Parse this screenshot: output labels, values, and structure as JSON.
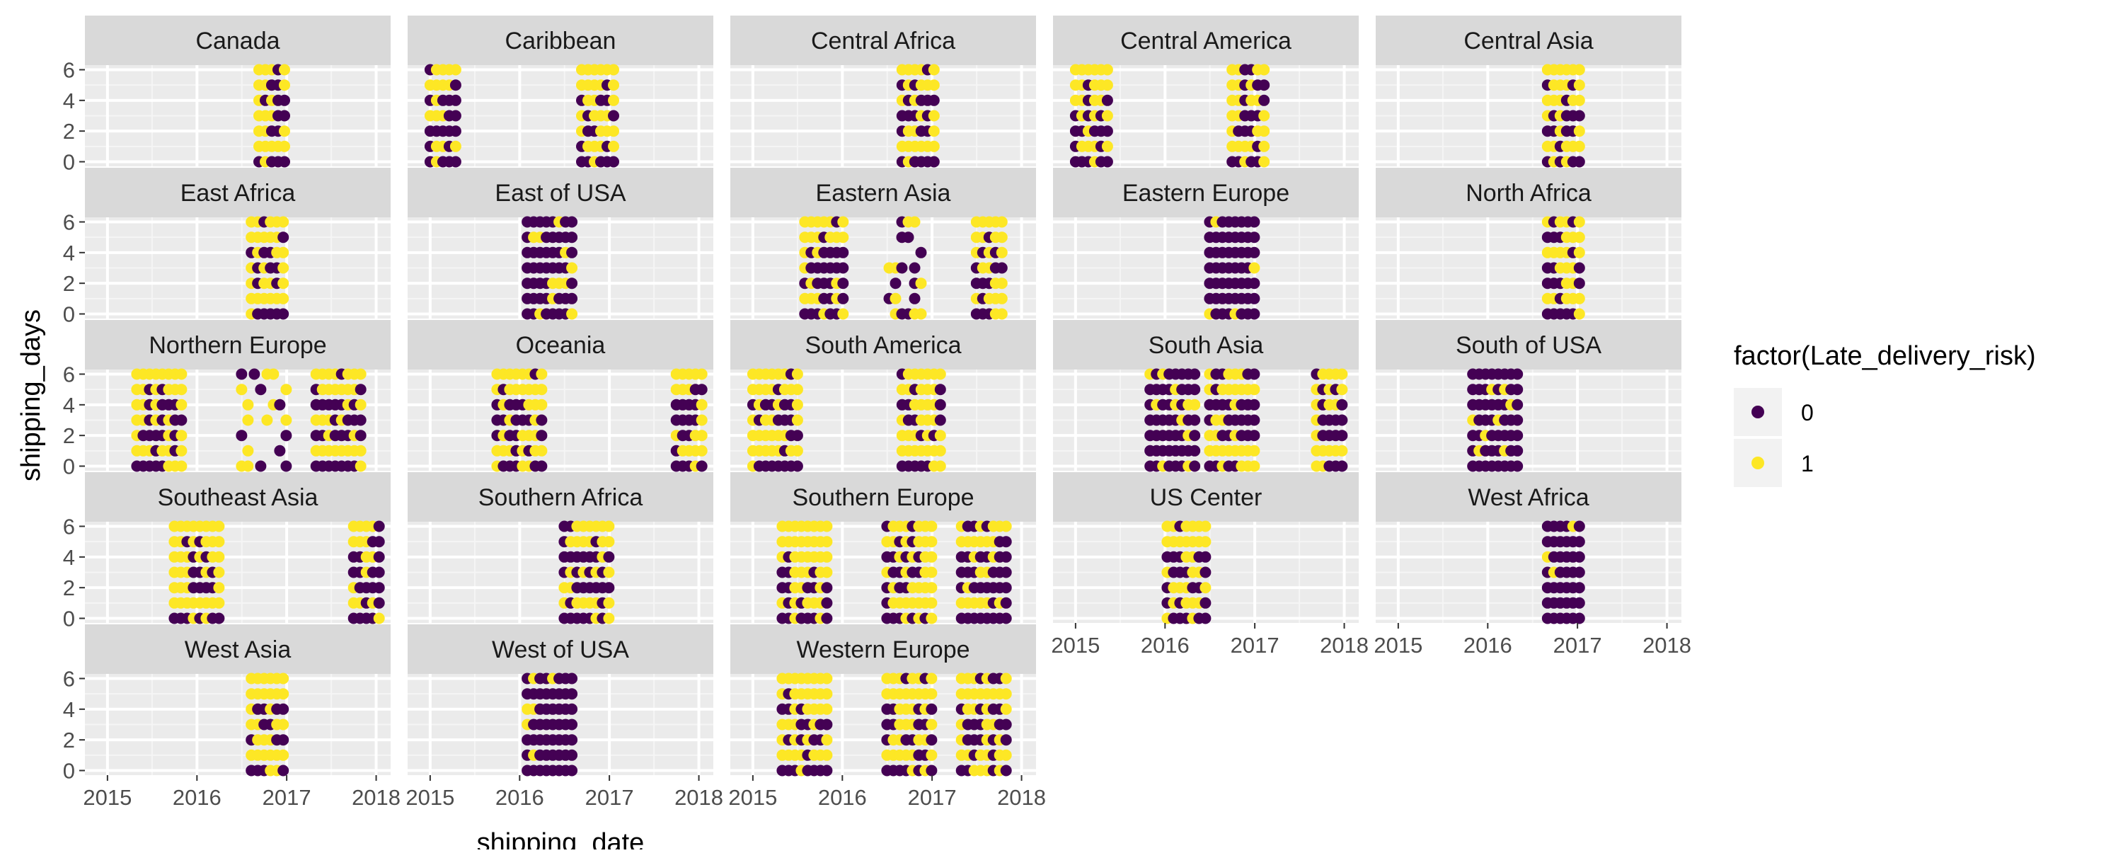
{
  "chart_data": {
    "type": "scatter",
    "xlabel": "shipping_date",
    "ylabel": "shipping_days",
    "xlim": [
      "2014-10-01",
      "2018-03-01"
    ],
    "ylim": [
      -0.3,
      6.3
    ],
    "x_ticks": [
      "2015",
      "2016",
      "2017",
      "2018"
    ],
    "y_ticks": [
      "0",
      "2",
      "4",
      "6"
    ],
    "grid": true,
    "layout": "facet_wrap 5 columns",
    "legend": {
      "title": "factor(Late_delivery_risk)",
      "position": "right",
      "entries": [
        {
          "label": "0",
          "color": "#440154"
        },
        {
          "label": "1",
          "color": "#FDE725"
        }
      ]
    },
    "colors": {
      "0": "#440154",
      "1": "#FDE725",
      "panel_bg": "#EBEBEB",
      "strip_bg": "#D9D9D9",
      "grid": "#FFFFFF"
    },
    "facets": [
      {
        "name": "Canada",
        "bands": [
          [
            "2016-09-10",
            "2017-01-10",
            "mixed"
          ]
        ]
      },
      {
        "name": "Caribbean",
        "bands": [
          [
            "2015-01-01",
            "2015-05-01",
            "mixed"
          ],
          [
            "2016-09-10",
            "2017-02-01",
            "mixed"
          ]
        ]
      },
      {
        "name": "Central Africa",
        "bands": [
          [
            "2016-09-01",
            "2017-01-10",
            "mixed"
          ]
        ]
      },
      {
        "name": "Central America",
        "bands": [
          [
            "2015-01-01",
            "2015-06-01",
            "mixed"
          ],
          [
            "2016-10-01",
            "2017-03-01",
            "mixed"
          ]
        ]
      },
      {
        "name": "Central Asia",
        "bands": [
          [
            "2016-09-01",
            "2017-01-10",
            "mixed"
          ]
        ]
      },
      {
        "name": "East Africa",
        "bands": [
          [
            "2016-08-10",
            "2017-01-10",
            "mixed"
          ]
        ]
      },
      {
        "name": "East of USA",
        "bands": [
          [
            "2016-02-01",
            "2016-08-01",
            "purple"
          ]
        ]
      },
      {
        "name": "Eastern Asia",
        "bands": [
          [
            "2015-08-01",
            "2016-01-20",
            "mixed"
          ],
          [
            "2016-07-10",
            "2016-12-10",
            "sparse"
          ],
          [
            "2017-07-01",
            "2017-11-01",
            "mixed"
          ]
        ]
      },
      {
        "name": "Eastern Europe",
        "bands": [
          [
            "2016-07-01",
            "2017-01-10",
            "purple"
          ]
        ]
      },
      {
        "name": "North Africa",
        "bands": [
          [
            "2016-09-01",
            "2017-01-10",
            "mixed"
          ]
        ]
      },
      {
        "name": "Northern Europe",
        "bands": [
          [
            "2015-05-01",
            "2015-11-10",
            "mixed"
          ],
          [
            "2016-07-01",
            "2017-01-10",
            "sparse"
          ],
          [
            "2017-05-01",
            "2017-11-01",
            "mixed"
          ]
        ]
      },
      {
        "name": "Oceania",
        "bands": [
          [
            "2015-10-01",
            "2016-04-01",
            "mixed"
          ],
          [
            "2017-10-01",
            "2018-01-15",
            "mixed"
          ]
        ]
      },
      {
        "name": "South America",
        "bands": [
          [
            "2015-01-01",
            "2015-07-10",
            "mixed"
          ],
          [
            "2016-09-01",
            "2017-03-01",
            "mixed"
          ]
        ]
      },
      {
        "name": "South Asia",
        "bands": [
          [
            "2015-11-01",
            "2016-05-01",
            "purple"
          ],
          [
            "2016-07-01",
            "2017-01-10",
            "mixed"
          ],
          [
            "2017-09-10",
            "2018-01-15",
            "mixed"
          ]
        ]
      },
      {
        "name": "South of  USA",
        "bands": [
          [
            "2015-11-01",
            "2016-05-01",
            "purple"
          ]
        ]
      },
      {
        "name": "Southeast Asia",
        "bands": [
          [
            "2015-10-01",
            "2016-04-01",
            "mixed"
          ],
          [
            "2017-10-01",
            "2018-01-15",
            "mixed"
          ]
        ]
      },
      {
        "name": "Southern Africa",
        "bands": [
          [
            "2016-07-01",
            "2017-01-10",
            "mixed"
          ]
        ]
      },
      {
        "name": "Southern Europe",
        "bands": [
          [
            "2015-05-01",
            "2015-11-10",
            "mixed"
          ],
          [
            "2016-07-01",
            "2017-01-10",
            "mixed"
          ],
          [
            "2017-05-01",
            "2017-11-01",
            "mixed"
          ]
        ]
      },
      {
        "name": "US Center",
        "bands": [
          [
            "2016-01-10",
            "2016-07-01",
            "mixed"
          ]
        ]
      },
      {
        "name": "West Africa",
        "bands": [
          [
            "2016-09-01",
            "2017-01-10",
            "purple"
          ]
        ]
      },
      {
        "name": "West Asia",
        "bands": [
          [
            "2016-08-10",
            "2017-01-10",
            "mixed"
          ]
        ]
      },
      {
        "name": "West of USA",
        "bands": [
          [
            "2016-02-01",
            "2016-08-01",
            "purple"
          ]
        ]
      },
      {
        "name": "Western Europe",
        "bands": [
          [
            "2015-05-01",
            "2015-11-10",
            "mixed"
          ],
          [
            "2016-07-01",
            "2017-01-10",
            "mixed"
          ],
          [
            "2017-05-01",
            "2017-11-01",
            "mixed"
          ]
        ]
      }
    ]
  }
}
